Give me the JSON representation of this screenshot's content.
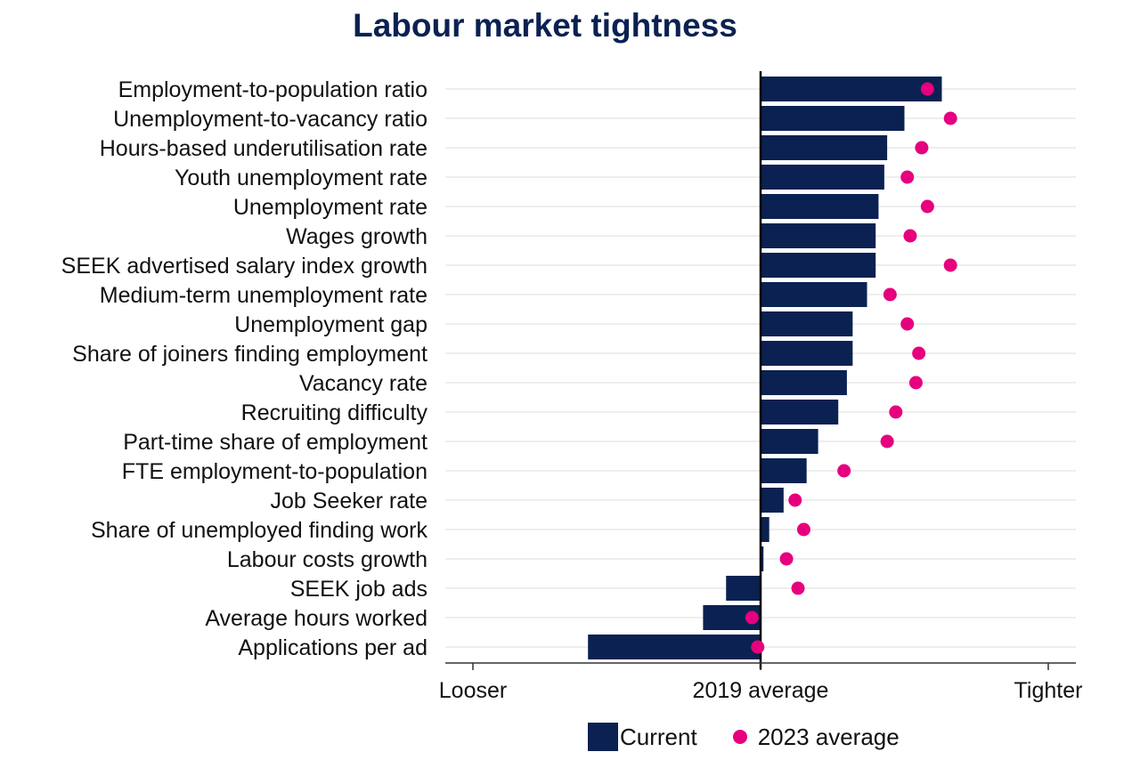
{
  "chart_data": {
    "type": "bar",
    "title": "Labour market tightness",
    "orientation": "horizontal",
    "xlim": [
      -1,
      1
    ],
    "x_tick_labels": [
      "Looser",
      "2019 average",
      "Tighter"
    ],
    "grid": true,
    "legend_position": "bottom",
    "colors": {
      "Current": "#0b2152",
      "2023 average": "#e6007e"
    },
    "categories": [
      "Employment-to-population ratio",
      "Unemployment-to-vacancy ratio",
      "Hours-based underutilisation rate",
      "Youth unemployment rate",
      "Unemployment rate",
      "Wages growth",
      "SEEK advertised salary index growth",
      "Medium-term unemployment rate",
      "Unemployment gap",
      "Share of joiners finding employment",
      "Vacancy rate",
      "Recruiting difficulty",
      "Part-time share of employment",
      "FTE employment-to-population",
      "Job Seeker rate",
      "Share of unemployed finding work",
      "Labour costs growth",
      "SEEK job ads",
      "Average hours worked",
      "Applications per ad"
    ],
    "series": [
      {
        "name": "Current",
        "mark": "bar",
        "values": [
          0.63,
          0.5,
          0.44,
          0.43,
          0.41,
          0.4,
          0.4,
          0.37,
          0.32,
          0.32,
          0.3,
          0.27,
          0.2,
          0.16,
          0.08,
          0.03,
          0.01,
          -0.12,
          -0.2,
          -0.6
        ]
      },
      {
        "name": "2023 average",
        "mark": "dot",
        "values": [
          0.58,
          0.66,
          0.56,
          0.51,
          0.58,
          0.52,
          0.66,
          0.45,
          0.51,
          0.55,
          0.54,
          0.47,
          0.44,
          0.29,
          0.12,
          0.15,
          0.09,
          0.13,
          -0.03,
          -0.01
        ]
      }
    ]
  }
}
